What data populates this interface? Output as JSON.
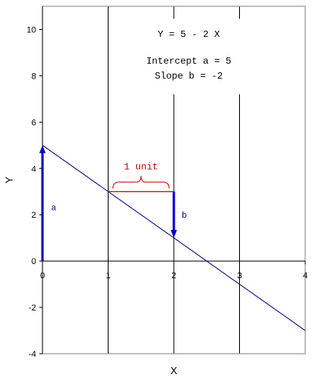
{
  "chart_data": {
    "type": "line",
    "xlabel": "X",
    "ylabel": "Y",
    "xlim": [
      0,
      4
    ],
    "ylim": [
      -4,
      11
    ],
    "x_ticks": [
      0,
      1,
      2,
      3,
      4
    ],
    "x_tick_labels": [
      "0",
      "1",
      "2",
      "3",
      "4"
    ],
    "y_ticks": [
      -4,
      -2,
      0,
      2,
      4,
      6,
      8,
      10
    ],
    "y_tick_labels": [
      "-4",
      "-2",
      "0",
      "2",
      "4",
      "6",
      "8",
      "10"
    ],
    "vertical_gridlines_at": [
      1,
      2,
      3
    ],
    "series": [
      {
        "x": [
          0,
          4
        ],
        "y": [
          5,
          -3
        ]
      }
    ],
    "annotation_box": {
      "equation": "Y = 5 - 2 X",
      "intercept": "Intercept a = 5",
      "slope": "Slope b = -2"
    },
    "annotations": {
      "intercept_arrow": {
        "x": 0,
        "from_y": 0,
        "to_y": 5,
        "label": "a"
      },
      "slope_arrow": {
        "x": 2,
        "from_y": 3,
        "to_y": 1,
        "label": "b"
      },
      "unit_segment": {
        "from_x": 1,
        "to_x": 2,
        "y": 3,
        "label": "1 unit"
      }
    },
    "colors": {
      "line": "#00008b",
      "arrow": "#0000cc",
      "unit": "#cc0000",
      "grid": "#000000"
    }
  }
}
